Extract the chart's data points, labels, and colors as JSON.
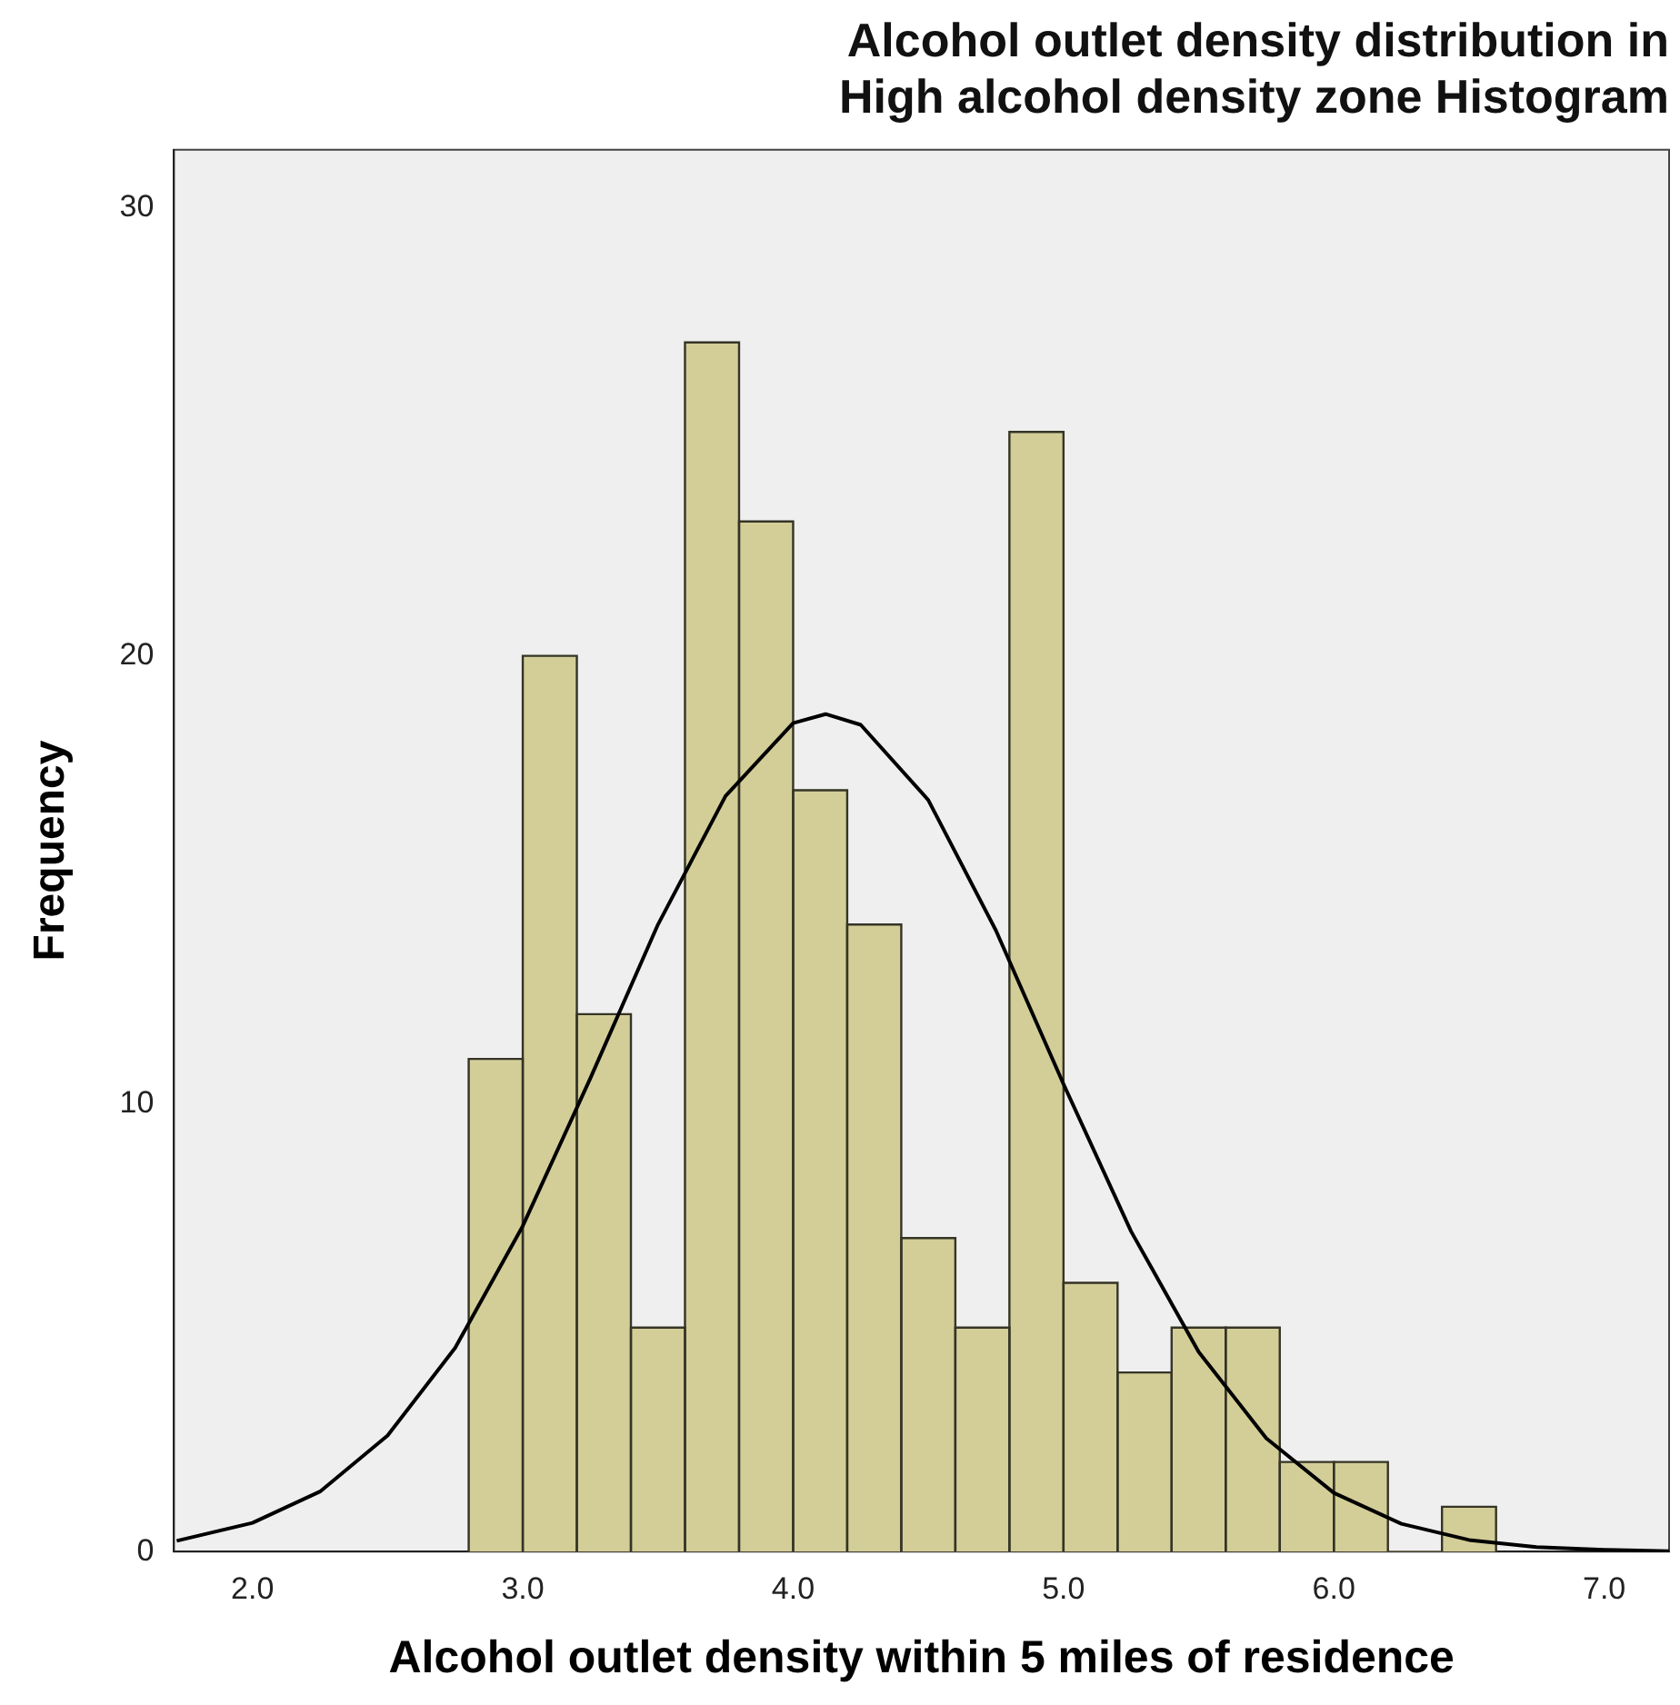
{
  "chart_data": {
    "type": "histogram",
    "title": "Alcohol outlet density distribution in\nHigh alcohol density zone Histogram",
    "xlabel": "Alcohol outlet density within 5 miles of residence",
    "ylabel": "Frequency",
    "bins": [
      2.8,
      3.0,
      3.2,
      3.4,
      3.6,
      3.8,
      4.0,
      4.2,
      4.4,
      4.6,
      4.8,
      5.0,
      5.2,
      5.4,
      5.6,
      5.8,
      6.0,
      6.2,
      6.4,
      6.6
    ],
    "values": [
      11,
      20,
      12,
      5,
      27,
      23,
      17,
      14,
      7,
      5,
      25,
      6,
      4,
      5,
      5,
      2,
      2,
      0,
      1
    ],
    "color": "#d3ce98",
    "series": [
      {
        "type": "line",
        "color": "#000000",
        "x": [
          1.72,
          2.0,
          2.25,
          2.5,
          2.75,
          3.0,
          3.25,
          3.5,
          3.75,
          4.0,
          4.12,
          4.25,
          4.5,
          4.75,
          5.0,
          5.25,
          5.5,
          5.75,
          6.0,
          6.25,
          6.5,
          6.75,
          7.0,
          7.24
        ],
        "values": [
          0.24,
          0.64,
          1.34,
          2.59,
          4.55,
          7.27,
          10.57,
          14.0,
          16.87,
          18.5,
          18.7,
          18.46,
          16.78,
          13.87,
          10.44,
          7.15,
          4.46,
          2.53,
          1.31,
          0.62,
          0.26,
          0.1,
          0.04,
          0.01
        ]
      }
    ],
    "xlim": [
      1.71,
      7.24
    ],
    "xticks": [
      {
        "value": 2,
        "label": "2.0"
      },
      {
        "value": 3,
        "label": "3.0"
      },
      {
        "value": 4,
        "label": "4.0"
      },
      {
        "value": 5,
        "label": "5.0"
      },
      {
        "value": 6,
        "label": "6.0"
      },
      {
        "value": 7,
        "label": "7.0"
      }
    ],
    "ylim": [
      0,
      31.3
    ],
    "yticks": [
      0,
      10,
      20,
      30
    ],
    "grid": false,
    "legend": false,
    "marker": "none",
    "line_style": "solid"
  }
}
